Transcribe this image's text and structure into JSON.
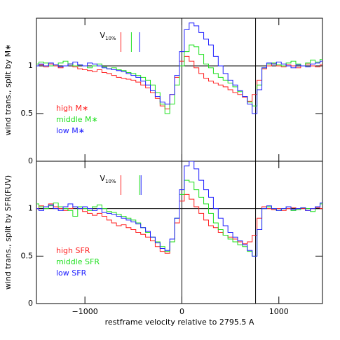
{
  "chart_data": [
    {
      "type": "line",
      "drawstyle": "steps-mid",
      "ylabel": "wind trans., split by M∗",
      "xlim": [
        -1500,
        1450
      ],
      "ylim": [
        0,
        1.5
      ],
      "xticks": [
        {
          "value": -1000,
          "label": "−1000"
        },
        0,
        1000
      ],
      "show_xtick_labels": false,
      "yticks": [
        0,
        0.5,
        1
      ],
      "vlines": [
        0,
        760
      ],
      "hlines": [
        1
      ],
      "legend": "lower left",
      "v10_label": "V",
      "v10_sub": "10%",
      "v10": [
        -629,
        -521,
        -436
      ],
      "x": [
        -1500,
        -1450,
        -1400,
        -1350,
        -1300,
        -1250,
        -1200,
        -1150,
        -1100,
        -1050,
        -1000,
        -950,
        -900,
        -850,
        -800,
        -750,
        -700,
        -650,
        -600,
        -550,
        -500,
        -450,
        -400,
        -350,
        -300,
        -250,
        -200,
        -150,
        -100,
        -50,
        0,
        50,
        100,
        150,
        200,
        250,
        300,
        350,
        400,
        450,
        500,
        550,
        600,
        650,
        700,
        750,
        800,
        850,
        900,
        950,
        1000,
        1050,
        1100,
        1150,
        1200,
        1250,
        1300,
        1350,
        1400,
        1450
      ],
      "series": [
        {
          "name": "high M∗",
          "color": "#ff2020",
          "values": [
            1.0,
            1.01,
            0.99,
            1.02,
            1.0,
            0.98,
            1.0,
            1.02,
            0.99,
            0.97,
            0.96,
            0.95,
            0.94,
            0.96,
            0.93,
            0.92,
            0.9,
            0.88,
            0.87,
            0.86,
            0.85,
            0.83,
            0.8,
            0.77,
            0.72,
            0.66,
            0.58,
            0.55,
            0.7,
            0.88,
            1.05,
            1.1,
            1.05,
            0.98,
            0.92,
            0.87,
            0.84,
            0.82,
            0.8,
            0.78,
            0.75,
            0.72,
            0.7,
            0.67,
            0.63,
            0.7,
            0.85,
            0.97,
            1.0,
            1.02,
            1.0,
            0.99,
            1.01,
            1.0,
            0.98,
            1.0,
            1.02,
            1.0,
            0.99,
            1.01
          ]
        },
        {
          "name": "middle M∗",
          "color": "#20e020",
          "values": [
            1.02,
            1.04,
            1.03,
            1.0,
            1.01,
            1.03,
            1.05,
            1.02,
            1.0,
            1.01,
            1.0,
            0.98,
            1.0,
            1.02,
            0.99,
            0.97,
            0.98,
            0.96,
            0.95,
            0.93,
            0.92,
            0.9,
            0.88,
            0.85,
            0.8,
            0.72,
            0.6,
            0.5,
            0.6,
            0.8,
            1.0,
            1.15,
            1.22,
            1.2,
            1.12,
            1.02,
            0.98,
            0.92,
            0.88,
            0.85,
            0.82,
            0.78,
            0.73,
            0.68,
            0.62,
            0.58,
            0.8,
            0.98,
            1.02,
            1.03,
            1.01,
            1.0,
            1.03,
            1.05,
            1.02,
            1.0,
            1.03,
            1.06,
            1.04,
            1.07
          ]
        },
        {
          "name": "low M∗",
          "color": "#2020ff",
          "values": [
            1.0,
            1.02,
            1.0,
            1.03,
            1.01,
            0.99,
            1.0,
            1.02,
            1.04,
            1.01,
            1.0,
            1.03,
            1.02,
            1.0,
            0.98,
            0.97,
            0.96,
            0.95,
            0.94,
            0.92,
            0.9,
            0.88,
            0.84,
            0.8,
            0.74,
            0.68,
            0.62,
            0.6,
            0.7,
            0.9,
            1.15,
            1.38,
            1.45,
            1.42,
            1.35,
            1.28,
            1.22,
            1.1,
            1.0,
            0.92,
            0.85,
            0.8,
            0.74,
            0.68,
            0.6,
            0.5,
            0.75,
            0.98,
            1.03,
            1.02,
            1.04,
            1.02,
            1.0,
            0.98,
            1.01,
            1.0,
            0.99,
            1.02,
            1.03,
            1.05
          ]
        }
      ]
    },
    {
      "type": "line",
      "drawstyle": "steps-mid",
      "ylabel": "wind trans., split by SFR(FUV)",
      "xlabel": "restframe velocity relative to 2795.5 A",
      "xlim": [
        -1500,
        1450
      ],
      "ylim": [
        0,
        1.5
      ],
      "xticks": [
        {
          "value": -1000,
          "label": "−1000"
        },
        0,
        1000
      ],
      "show_xtick_labels": true,
      "yticks": [
        0,
        0.5,
        1
      ],
      "vlines": [
        0,
        760
      ],
      "hlines": [
        1
      ],
      "legend": "lower left",
      "v10_label": "V",
      "v10_sub": "10%",
      "v10": [
        -629,
        -436,
        -421
      ],
      "x": [
        -1500,
        -1450,
        -1400,
        -1350,
        -1300,
        -1250,
        -1200,
        -1150,
        -1100,
        -1050,
        -1000,
        -950,
        -900,
        -850,
        -800,
        -750,
        -700,
        -650,
        -600,
        -550,
        -500,
        -450,
        -400,
        -350,
        -300,
        -250,
        -200,
        -150,
        -100,
        -50,
        0,
        50,
        100,
        150,
        200,
        250,
        300,
        350,
        400,
        450,
        500,
        550,
        600,
        650,
        700,
        750,
        800,
        850,
        900,
        950,
        1000,
        1050,
        1100,
        1150,
        1200,
        1250,
        1300,
        1350,
        1400,
        1450
      ],
      "series": [
        {
          "name": "high SFR",
          "color": "#ff2020",
          "values": [
            1.0,
            1.03,
            1.02,
            1.05,
            1.02,
            1.0,
            0.98,
            1.0,
            1.02,
            1.0,
            0.97,
            0.95,
            0.93,
            0.95,
            0.92,
            0.88,
            0.85,
            0.82,
            0.83,
            0.8,
            0.78,
            0.75,
            0.73,
            0.7,
            0.66,
            0.6,
            0.55,
            0.53,
            0.65,
            0.85,
            1.08,
            1.15,
            1.1,
            1.02,
            0.95,
            0.88,
            0.82,
            0.8,
            0.75,
            0.72,
            0.7,
            0.68,
            0.65,
            0.63,
            0.65,
            0.72,
            0.9,
            1.02,
            1.0,
            0.99,
            1.0,
            0.98,
            1.0,
            1.01,
            0.99,
            1.0,
            0.98,
            1.0,
            1.01,
            1.0
          ]
        },
        {
          "name": "middle SFR",
          "color": "#20e020",
          "values": [
            1.05,
            1.02,
            1.0,
            1.03,
            1.06,
            1.02,
            1.0,
            0.98,
            0.92,
            1.02,
            1.0,
            0.98,
            1.02,
            1.04,
            1.0,
            0.97,
            0.96,
            0.94,
            0.92,
            0.9,
            0.88,
            0.85,
            0.8,
            0.75,
            0.7,
            0.65,
            0.6,
            0.55,
            0.65,
            0.9,
            1.15,
            1.3,
            1.28,
            1.2,
            1.12,
            1.05,
            0.95,
            0.85,
            0.78,
            0.72,
            0.68,
            0.65,
            0.62,
            0.6,
            0.55,
            0.5,
            0.78,
            1.0,
            1.02,
            1.0,
            0.98,
            1.0,
            1.02,
            0.98,
            0.99,
            1.01,
            1.0,
            0.97,
            1.02,
            1.05
          ]
        },
        {
          "name": "low SFR",
          "color": "#2020ff",
          "values": [
            1.0,
            0.98,
            1.02,
            1.04,
            1.0,
            0.98,
            1.02,
            1.05,
            1.02,
            1.0,
            1.02,
            1.0,
            0.98,
            1.0,
            0.96,
            0.95,
            0.94,
            0.92,
            0.9,
            0.88,
            0.86,
            0.84,
            0.8,
            0.76,
            0.7,
            0.64,
            0.58,
            0.56,
            0.68,
            0.9,
            1.2,
            1.45,
            1.5,
            1.42,
            1.3,
            1.2,
            1.12,
            1.0,
            0.9,
            0.82,
            0.75,
            0.7,
            0.66,
            0.62,
            0.56,
            0.5,
            0.78,
            1.0,
            1.03,
            1.0,
            0.98,
            1.0,
            1.02,
            0.99,
            1.0,
            1.01,
            0.98,
            1.0,
            1.02,
            1.06
          ]
        }
      ]
    }
  ]
}
